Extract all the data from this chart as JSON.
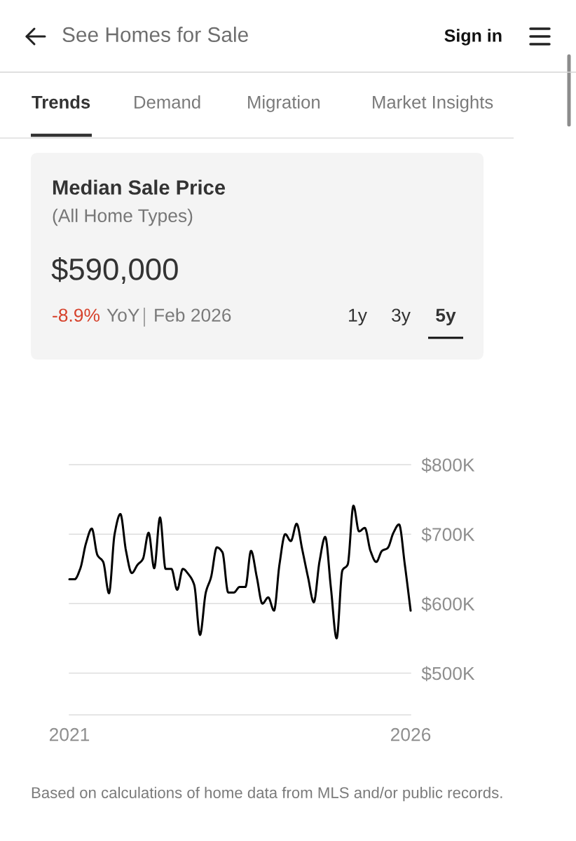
{
  "chart_data": {
    "type": "line",
    "title": "Median Sale Price",
    "subtitle": "(All Home Types)",
    "x": [
      "2021-02",
      "2021-03",
      "2021-04",
      "2021-05",
      "2021-06",
      "2021-07",
      "2021-08",
      "2021-09",
      "2021-10",
      "2021-11",
      "2021-12",
      "2022-01",
      "2022-02",
      "2022-03",
      "2022-04",
      "2022-05",
      "2022-06",
      "2022-07",
      "2022-08",
      "2022-09",
      "2022-10",
      "2022-11",
      "2022-12",
      "2023-01",
      "2023-02",
      "2023-03",
      "2023-04",
      "2023-05",
      "2023-06",
      "2023-07",
      "2023-08",
      "2023-09",
      "2023-10",
      "2023-11",
      "2023-12",
      "2024-01",
      "2024-02",
      "2024-03",
      "2024-04",
      "2024-05",
      "2024-06",
      "2024-07",
      "2024-08",
      "2024-09",
      "2024-10",
      "2024-11",
      "2024-12",
      "2025-01",
      "2025-02",
      "2025-03",
      "2025-04",
      "2025-05",
      "2025-06",
      "2025-07",
      "2025-08",
      "2025-09",
      "2025-10",
      "2025-11",
      "2025-12",
      "2026-01",
      "2026-02"
    ],
    "series": [
      {
        "color": "#000000",
        "values": [
          635000,
          635000,
          651000,
          687000,
          708000,
          670000,
          660000,
          615000,
          700000,
          729000,
          676000,
          644000,
          656000,
          664000,
          702000,
          651000,
          724000,
          650000,
          650000,
          620000,
          650000,
          642000,
          627000,
          555000,
          616000,
          638000,
          681000,
          674000,
          616000,
          616000,
          624000,
          624000,
          676000,
          638000,
          600000,
          609000,
          590000,
          656000,
          700000,
          690000,
          715000,
          678000,
          638000,
          602000,
          660000,
          696000,
          624000,
          550000,
          648000,
          656000,
          741000,
          704000,
          709000,
          676000,
          660000,
          676000,
          680000,
          702000,
          714000,
          656000,
          590000
        ]
      }
    ],
    "xlim": [
      "2021-02",
      "2026-02"
    ],
    "xticks": [
      {
        "value": "2021-02",
        "label": "2021"
      },
      {
        "value": "2026-02",
        "label": "2026"
      }
    ],
    "ylim": [
      440000,
      800000
    ],
    "yticks": [
      {
        "value": 500000,
        "label": "$500K"
      },
      {
        "value": 600000,
        "label": "$600K"
      },
      {
        "value": 700000,
        "label": "$700K"
      },
      {
        "value": 800000,
        "label": "$800K"
      }
    ],
    "grid": "y",
    "line_style": "solid",
    "annotations": [
      "See Homes for Sale",
      "Sign in",
      "Trends",
      "Demand",
      "Migration",
      "Market Insights",
      "$590,000",
      "-8.9%",
      "YoY",
      "Feb 2026",
      "1y",
      "3y",
      "5y",
      "Based on calculations of home data from MLS and/or public records."
    ]
  }
}
